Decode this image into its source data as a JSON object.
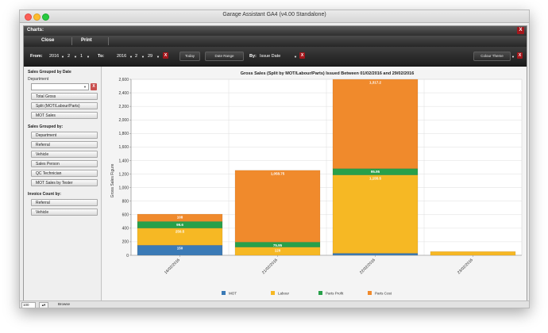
{
  "window": {
    "title": "Garage Assistant GA4 (v4.00 Standalone)"
  },
  "panel": {
    "title": "Charts:",
    "close_x": "X"
  },
  "toolbar": {
    "close_label": "Close",
    "print_label": "Print"
  },
  "filters": {
    "from_label": "From:",
    "from_year": "2016",
    "from_month": "2",
    "from_day": "1",
    "to_label": "To:",
    "to_year": "2016",
    "to_month": "2",
    "to_day": "29",
    "clear_x": "X",
    "today_label": "Today",
    "date_range_label": "Date Range",
    "by_label": "By:",
    "by_value": "Issue Date",
    "colour_theme_label": "Colour Theme"
  },
  "sidebar": {
    "section1_title": "Sales Grouped by Date",
    "department_label": "Department",
    "dept_clear": "X",
    "date_buttons": [
      "Total Gross",
      "Split  (MOT/Labour/Parts)",
      "MOT Sales"
    ],
    "section2_title": "Sales Grouped by:",
    "group_buttons": [
      "Department",
      "Referral",
      "Vehicle",
      "Sales Person",
      "QC Technician",
      "MOT Sales by Tester"
    ],
    "section3_title": "Invoice Count by:",
    "count_buttons": [
      "Referral",
      "Vehicle"
    ]
  },
  "statusbar": {
    "zoom": "100",
    "browse": "Browse"
  },
  "colors": {
    "mot": "#3a7ab6",
    "labour": "#f6b824",
    "parts_profit": "#28a04a",
    "parts_cost": "#f08a2c"
  },
  "chart_data": {
    "type": "bar",
    "stacked": true,
    "title": "Gross Sales (Split by MOT/Labour/Parts)  Issued Between 01/02/2016 and 29/02/2016",
    "ylabel": "Gross Sales Figure",
    "xlabel": "",
    "ylim": [
      0,
      2600
    ],
    "yticks": [
      "0",
      "200",
      "400",
      "600",
      "800",
      "1,000",
      "1,200",
      "1,400",
      "1,600",
      "1,800",
      "2,000",
      "2,200",
      "2,400",
      "2,600"
    ],
    "categories": [
      "16/02/2016",
      "21/02/2016",
      "22/02/2016",
      "23/02/2016"
    ],
    "series": [
      {
        "name": "MOT",
        "values": [
          150,
          0,
          30,
          0
        ],
        "labels": [
          "150",
          "",
          "",
          ""
        ]
      },
      {
        "name": "Labour",
        "values": [
          250.5,
          120,
          1155.5,
          55
        ],
        "labels": [
          "250.5",
          "120",
          "1,155.5",
          ""
        ]
      },
      {
        "name": "Parts Profit",
        "values": [
          99.6,
          75.95,
          95.95,
          0
        ],
        "labels": [
          "99.6",
          "75.95",
          "95.95",
          ""
        ]
      },
      {
        "name": "Parts Cost",
        "values": [
          108,
          1058.75,
          1317.2,
          0
        ],
        "labels": [
          "108",
          "1,058.75",
          "1,317.2",
          ""
        ]
      }
    ],
    "legend_position": "bottom",
    "grid": true
  }
}
